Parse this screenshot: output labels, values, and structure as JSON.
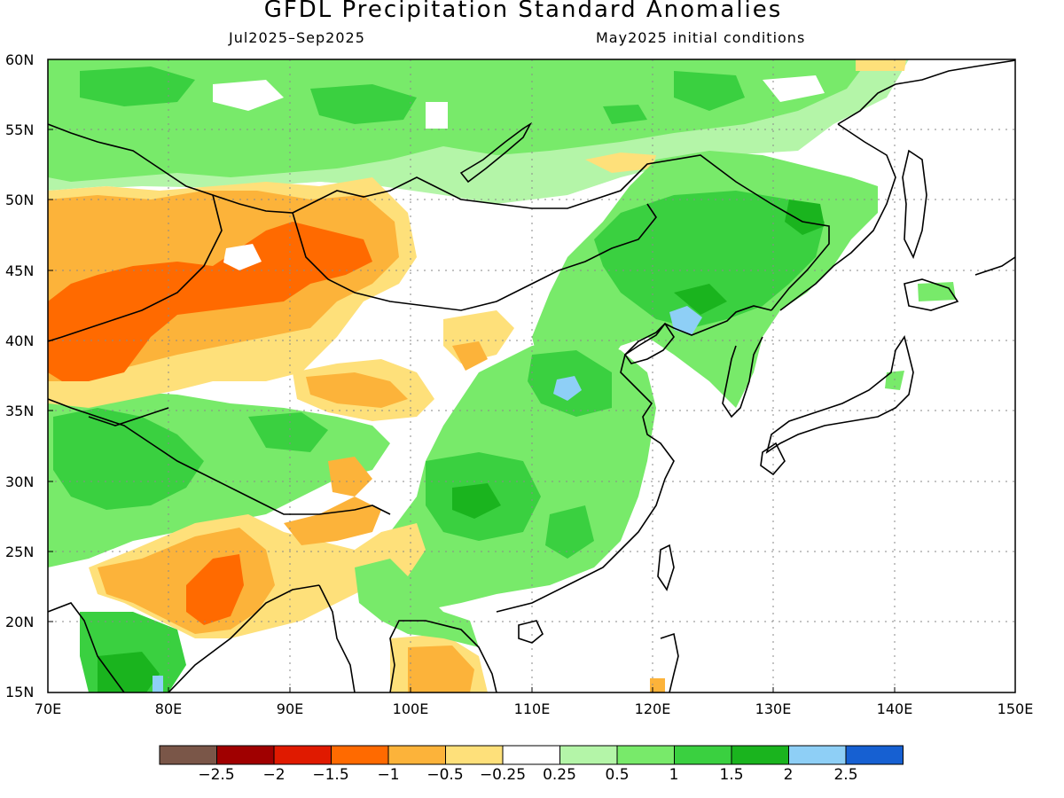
{
  "title": "GFDL Precipitation Standard Anomalies",
  "subtitle_left": "Jul2025–Sep2025",
  "subtitle_right": "May2025 initial conditions",
  "lat_labels": [
    "60N",
    "55N",
    "50N",
    "45N",
    "40N",
    "35N",
    "30N",
    "25N",
    "20N",
    "15N"
  ],
  "lon_labels": [
    "70E",
    "80E",
    "90E",
    "100E",
    "110E",
    "120E",
    "130E",
    "140E",
    "150E"
  ],
  "colorbar": {
    "colors": [
      "#7a5648",
      "#a00000",
      "#e01a00",
      "#ff6a00",
      "#fcb33a",
      "#fee07a",
      "#ffffff",
      "#b4f5a8",
      "#78ea6a",
      "#3ad040",
      "#1ab41e",
      "#8ecff6",
      "#1660d2"
    ],
    "labels": [
      "−2.5",
      "−2",
      "−1.5",
      "−1",
      "−0.5",
      "−0.25",
      "0.25",
      "0.5",
      "1",
      "1.5",
      "2",
      "2.5"
    ]
  },
  "palette": {
    "brown": "#7a5648",
    "dark_red": "#a00000",
    "red": "#e01a00",
    "dark_orange": "#ff6a00",
    "orange": "#fcb33a",
    "light_yellow": "#fee07a",
    "white": "#ffffff",
    "light_green": "#b4f5a8",
    "green": "#78ea6a",
    "mid_green": "#3ad040",
    "dark_green": "#1ab41e",
    "light_blue": "#8ecff6",
    "blue": "#1660d2"
  }
}
